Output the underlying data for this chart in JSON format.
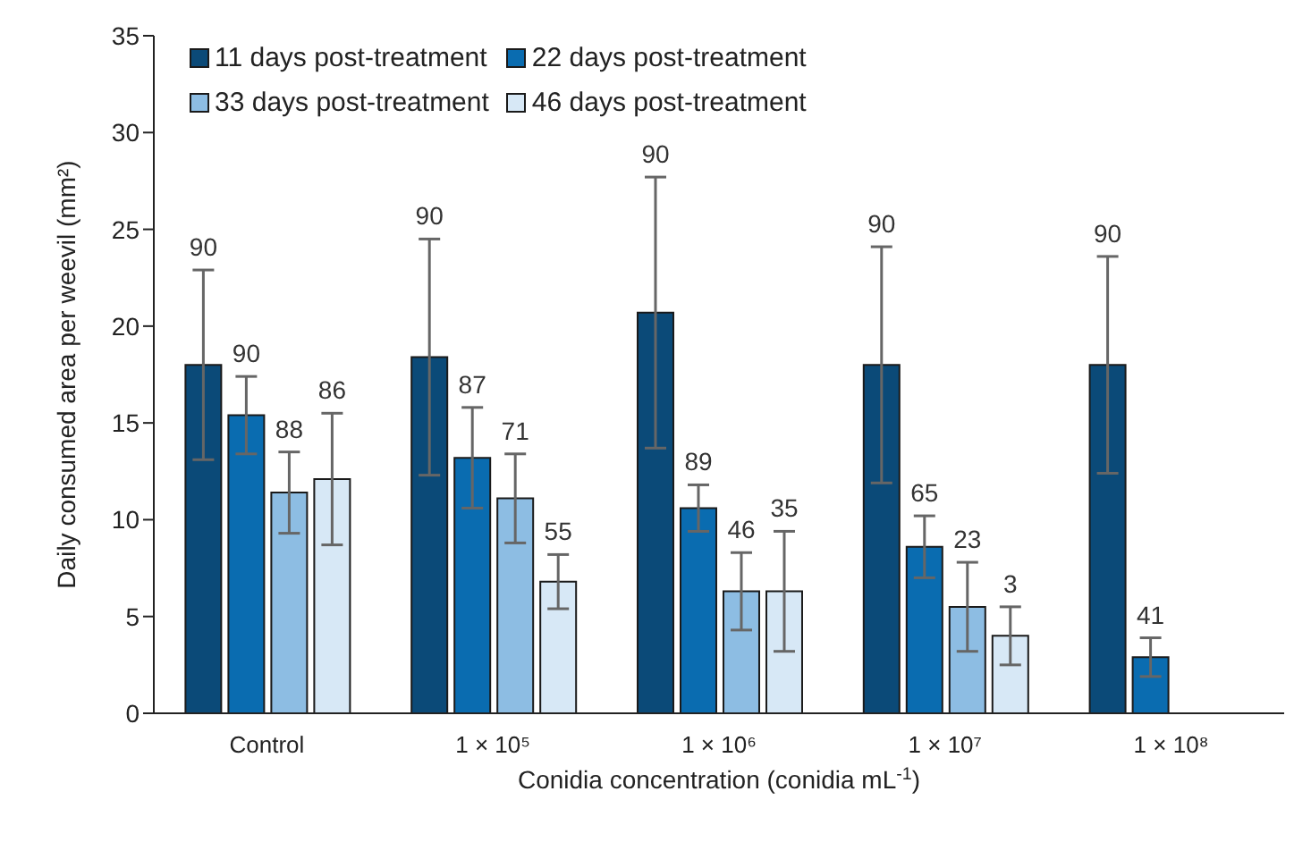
{
  "chart_data": {
    "type": "bar",
    "xlabel": "Conidia concentration (conidia mL$^{-1}$)",
    "ylabel": "Daily consumed area per weevil (mm²)",
    "categories": [
      "Control",
      "1 × 10⁵",
      "1 × 10⁶",
      "1 × 10⁷",
      "1 × 10⁸"
    ],
    "ylim": [
      0,
      35
    ],
    "yticks": [
      0,
      5,
      10,
      15,
      20,
      25,
      30,
      35
    ],
    "grid": false,
    "legend": "top left",
    "series": [
      {
        "name": "11 days post-treatment",
        "color": "#0b4a78",
        "values": [
          18,
          18.4,
          20.7,
          18,
          18
        ],
        "errors": [
          4.9,
          6.1,
          7,
          6.1,
          5.6
        ]
      },
      {
        "name": "22 days post-treatment",
        "color": "#0a6cb0",
        "values": [
          15.4,
          13.2,
          10.6,
          8.6,
          2.9
        ],
        "errors": [
          2,
          2.6,
          1.2,
          1.6,
          1
        ]
      },
      {
        "name": "33 days post-treatment",
        "color": "#8dbde3",
        "values": [
          11.4,
          11.1,
          6.3,
          5.5,
          null
        ],
        "errors": [
          2.1,
          2.3,
          2,
          2.3,
          null
        ]
      },
      {
        "name": "46 days post-treatment",
        "color": "#d7e8f6",
        "values": [
          12.1,
          6.8,
          6.3,
          4,
          null
        ],
        "errors": [
          3.4,
          1.4,
          3.1,
          1.5,
          null
        ]
      }
    ],
    "annotations": [
      "90",
      "90",
      "88",
      "86",
      "90",
      "87",
      "71",
      "55",
      "90",
      "89",
      "46",
      "35",
      "90",
      "65",
      "23",
      "3",
      "90",
      "41"
    ]
  }
}
